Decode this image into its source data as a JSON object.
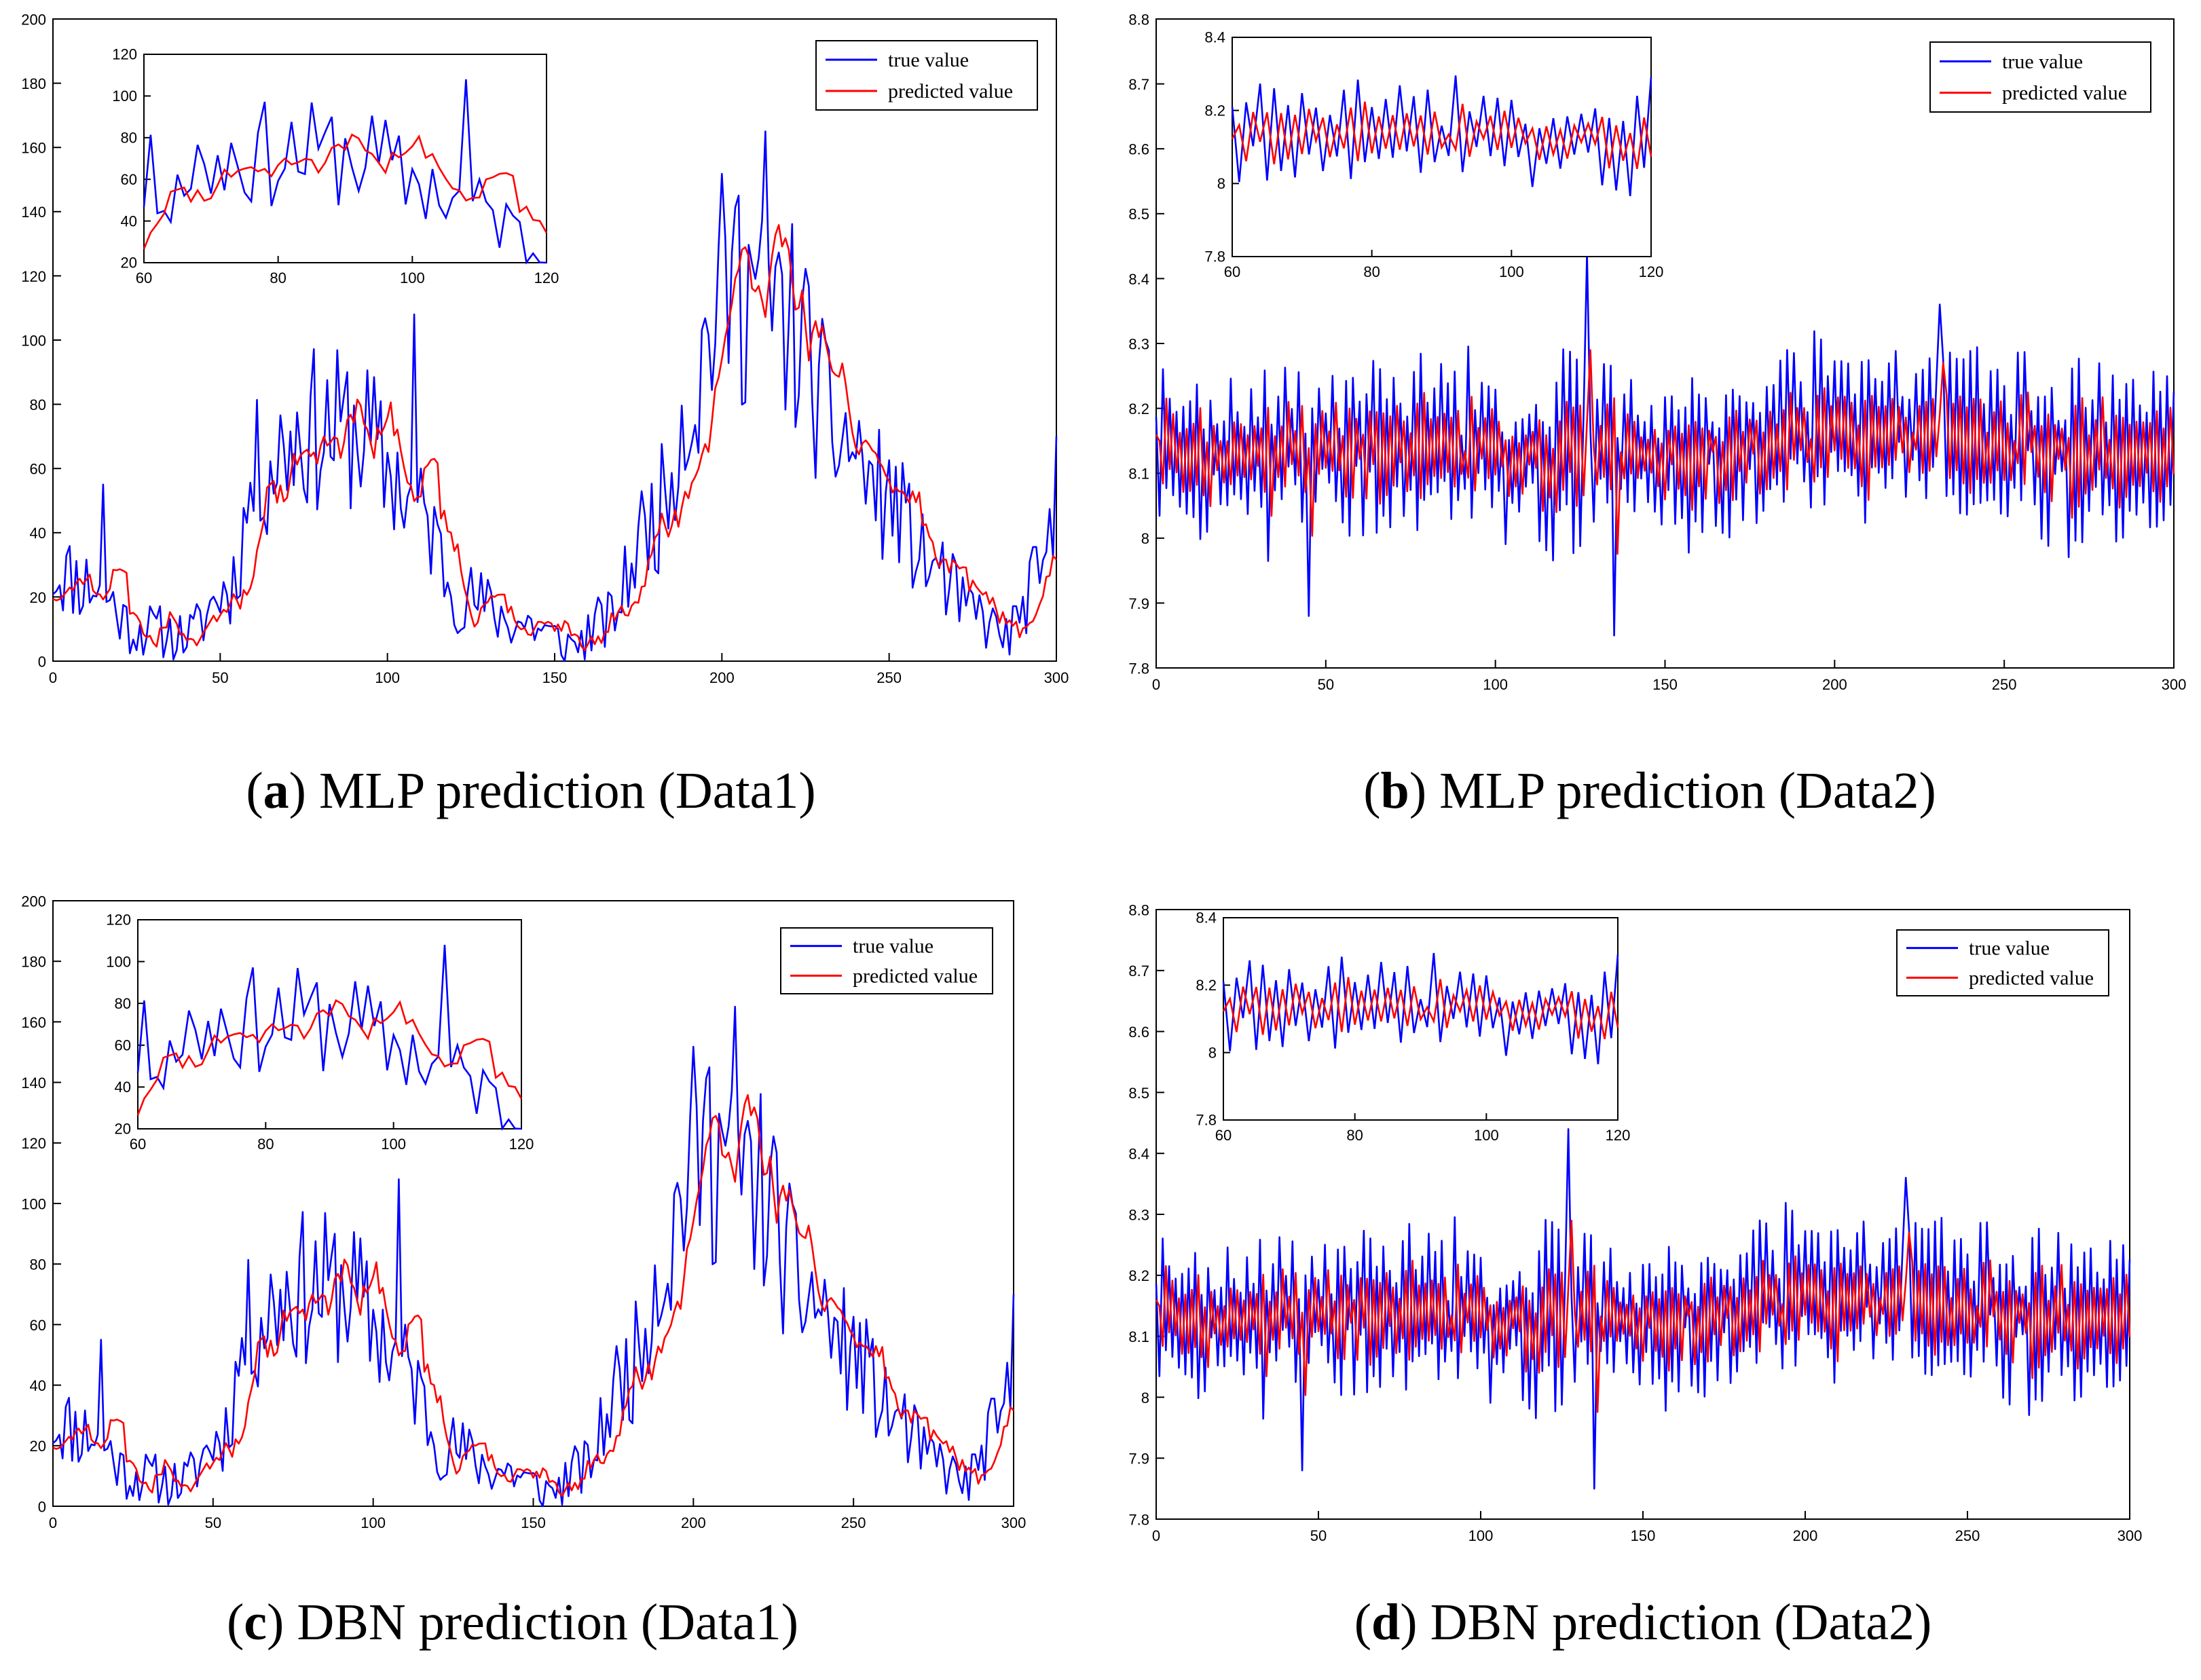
{
  "chart_data": [
    {
      "id": "a",
      "type": "line",
      "caption": {
        "letter": "a",
        "text": "MLP prediction (Data1)"
      },
      "legend": {
        "true_label": "true value",
        "pred_label": "predicted value",
        "position": "top-right"
      },
      "colors": {
        "true": "#0000ff",
        "pred": "#ff0000"
      },
      "xlim": [
        0,
        300
      ],
      "ylim": [
        0,
        200
      ],
      "xticks": [
        "0",
        "50",
        "100",
        "150",
        "200",
        "250",
        "300"
      ],
      "yticks": [
        "0",
        "20",
        "40",
        "60",
        "80",
        "100",
        "120",
        "140",
        "160",
        "180",
        "200"
      ],
      "inset": {
        "xlim": [
          60,
          120
        ],
        "ylim": [
          20,
          120
        ],
        "xticks": [
          "60",
          "80",
          "100",
          "120"
        ],
        "yticks": [
          "20",
          "40",
          "60",
          "80",
          "100",
          "120"
        ]
      },
      "profile": "traffic",
      "seed": 11
    },
    {
      "id": "b",
      "type": "line",
      "caption": {
        "letter": "b",
        "text": "MLP prediction (Data2)"
      },
      "legend": {
        "true_label": "true value",
        "pred_label": "predicted value",
        "position": "top-right"
      },
      "colors": {
        "true": "#0000ff",
        "pred": "#ff0000"
      },
      "xlim": [
        0,
        300
      ],
      "ylim": [
        7.8,
        8.8
      ],
      "xticks": [
        "0",
        "50",
        "100",
        "150",
        "200",
        "250",
        "300"
      ],
      "yticks": [
        "7.8",
        "7.9",
        "8",
        "8.1",
        "8.2",
        "8.3",
        "8.4",
        "8.5",
        "8.6",
        "8.7",
        "8.8"
      ],
      "inset": {
        "xlim": [
          60,
          120
        ],
        "ylim": [
          7.8,
          8.4
        ],
        "xticks": [
          "60",
          "80",
          "100",
          "120"
        ],
        "yticks": [
          "7.8",
          "8",
          "8.2",
          "8.4"
        ]
      },
      "profile": "oscillating",
      "seed": 23
    },
    {
      "id": "c",
      "type": "line",
      "caption": {
        "letter": "c",
        "text": "DBN prediction (Data1)"
      },
      "legend": {
        "true_label": "true value",
        "pred_label": "predicted value",
        "position": "top-right"
      },
      "colors": {
        "true": "#0000ff",
        "pred": "#ff0000"
      },
      "xlim": [
        0,
        300
      ],
      "ylim": [
        0,
        200
      ],
      "xticks": [
        "0",
        "50",
        "100",
        "150",
        "200",
        "250",
        "300"
      ],
      "yticks": [
        "0",
        "20",
        "40",
        "60",
        "80",
        "100",
        "120",
        "140",
        "160",
        "180",
        "200"
      ],
      "inset": {
        "xlim": [
          60,
          120
        ],
        "ylim": [
          20,
          120
        ],
        "xticks": [
          "60",
          "80",
          "100",
          "120"
        ],
        "yticks": [
          "20",
          "40",
          "60",
          "80",
          "100",
          "120"
        ]
      },
      "profile": "traffic",
      "seed": 11
    },
    {
      "id": "d",
      "type": "line",
      "caption": {
        "letter": "d",
        "text": "DBN prediction (Data2)"
      },
      "legend": {
        "true_label": "true value",
        "pred_label": "predicted value",
        "position": "top-right"
      },
      "colors": {
        "true": "#0000ff",
        "pred": "#ff0000"
      },
      "xlim": [
        0,
        300
      ],
      "ylim": [
        7.8,
        8.8
      ],
      "xticks": [
        "0",
        "50",
        "100",
        "150",
        "200",
        "250",
        "300"
      ],
      "yticks": [
        "7.8",
        "7.9",
        "8",
        "8.1",
        "8.2",
        "8.3",
        "8.4",
        "8.5",
        "8.6",
        "8.7",
        "8.8"
      ],
      "inset": {
        "xlim": [
          60,
          120
        ],
        "ylim": [
          7.8,
          8.4
        ],
        "xticks": [
          "60",
          "80",
          "100",
          "120"
        ],
        "yticks": [
          "7.8",
          "8",
          "8.2",
          "8.4"
        ]
      },
      "profile": "oscillating",
      "seed": 23
    }
  ]
}
